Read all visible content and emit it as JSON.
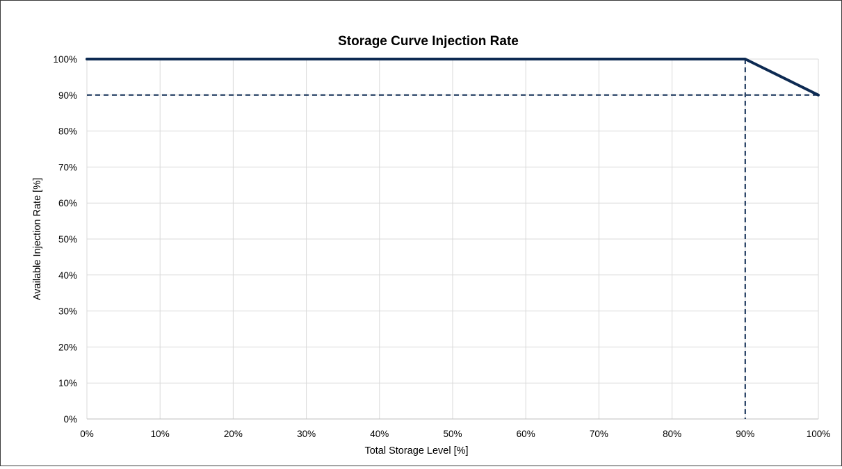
{
  "chart_data": {
    "type": "line",
    "title": "Storage Curve Injection Rate",
    "xlabel": "Total Storage Level [%]",
    "ylabel": "Available Injection Rate [%]",
    "xlim": [
      0,
      100
    ],
    "ylim": [
      0,
      100
    ],
    "grid": true,
    "x_ticks": [
      "0%",
      "10%",
      "20%",
      "30%",
      "40%",
      "50%",
      "60%",
      "70%",
      "80%",
      "90%",
      "100%"
    ],
    "y_ticks": [
      "0%",
      "10%",
      "20%",
      "30%",
      "40%",
      "50%",
      "60%",
      "70%",
      "80%",
      "90%",
      "100%"
    ],
    "series": [
      {
        "x": [
          0,
          90,
          92,
          94,
          96,
          98,
          100
        ],
        "y": [
          100,
          100,
          98,
          96,
          94,
          92,
          90
        ],
        "color": "#0d2a52"
      }
    ],
    "reference_lines": [
      {
        "orientation": "horizontal",
        "value": 90,
        "style": "dashed",
        "color": "#0d2a52"
      },
      {
        "orientation": "vertical",
        "value": 90,
        "style": "dashed",
        "color": "#0d2a52"
      }
    ],
    "colors": {
      "line": "#0d2a52",
      "grid": "#d9d9d9"
    }
  }
}
